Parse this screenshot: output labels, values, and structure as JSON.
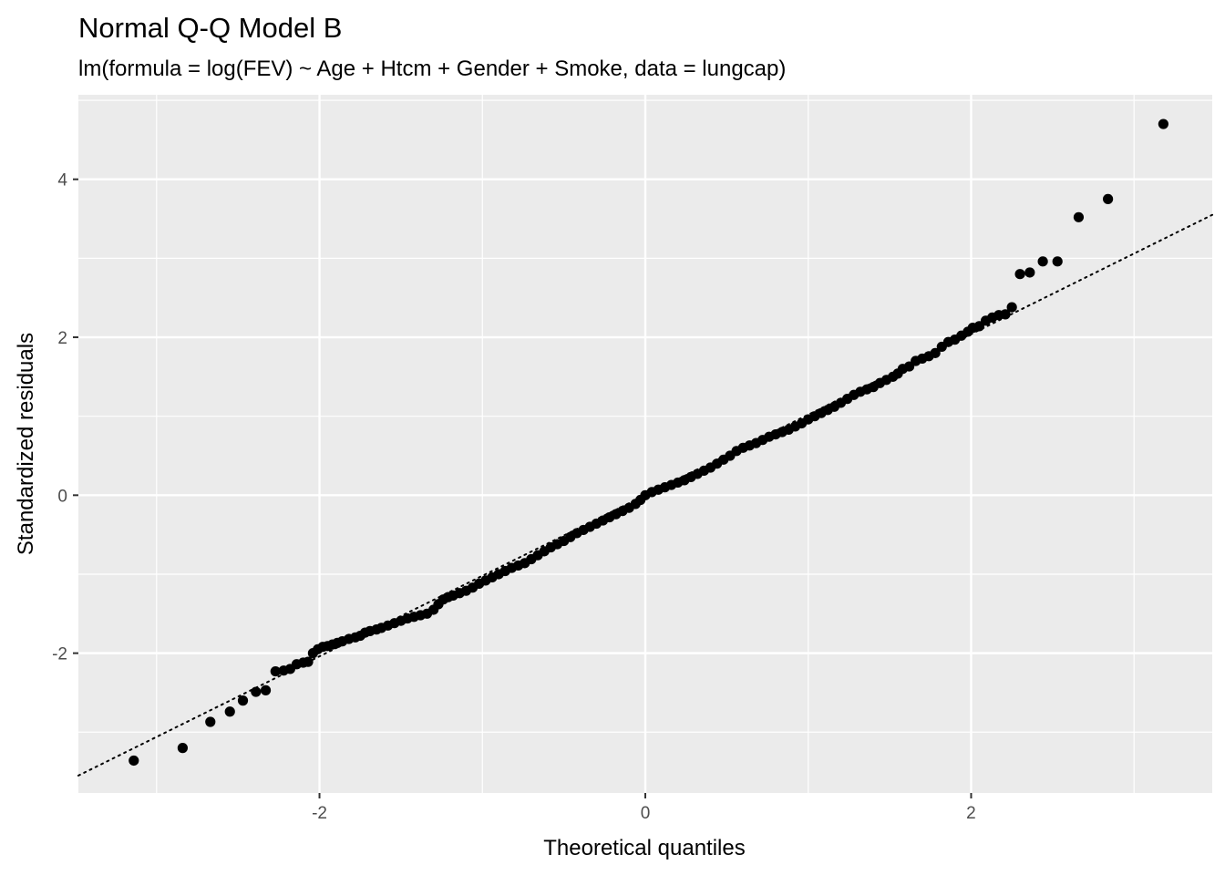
{
  "chart_data": {
    "type": "scatter",
    "title": "Normal Q-Q Model B",
    "subtitle": "lm(formula = log(FEV) ~ Age + Htcm + Gender + Smoke, data = lungcap)",
    "xlabel": "Theoretical quantiles",
    "ylabel": "Standardized residuals",
    "xlim": [
      -3.48,
      3.48
    ],
    "ylim": [
      -3.77,
      5.07
    ],
    "x_ticks": [
      -2,
      0,
      2
    ],
    "x_tick_labels": [
      "-2",
      "0",
      "2"
    ],
    "y_ticks": [
      -2,
      0,
      2,
      4
    ],
    "y_tick_labels": [
      "-2",
      "0",
      "2",
      "4"
    ],
    "grid": true,
    "reference_line": {
      "style": "dotted",
      "color": "#000000",
      "intercept": 0.0,
      "slope": 1.02
    },
    "series": [
      {
        "color": "#000000",
        "points": [
          [
            -3.14,
            -3.36
          ],
          [
            -2.84,
            -3.2
          ],
          [
            -2.67,
            -2.87
          ],
          [
            -2.55,
            -2.74
          ],
          [
            -2.47,
            -2.6
          ],
          [
            -2.39,
            -2.49
          ],
          [
            -2.33,
            -2.47
          ],
          [
            -2.27,
            -2.23
          ],
          [
            -2.22,
            -2.22
          ],
          [
            -2.18,
            -2.2
          ],
          [
            -2.14,
            -2.14
          ],
          [
            -2.1,
            -2.12
          ],
          [
            -2.07,
            -2.11
          ],
          [
            -2.04,
            -2.0
          ],
          [
            -2.01,
            -1.95
          ],
          [
            -1.98,
            -1.92
          ],
          [
            -1.95,
            -1.91
          ],
          [
            -1.92,
            -1.89
          ],
          [
            -1.89,
            -1.87
          ],
          [
            -1.86,
            -1.85
          ],
          [
            -1.82,
            -1.82
          ],
          [
            -1.78,
            -1.8
          ],
          [
            -1.75,
            -1.78
          ],
          [
            -1.72,
            -1.74
          ],
          [
            -1.69,
            -1.72
          ],
          [
            -1.65,
            -1.7
          ],
          [
            -1.62,
            -1.68
          ],
          [
            -1.58,
            -1.65
          ],
          [
            -1.54,
            -1.62
          ],
          [
            -1.5,
            -1.59
          ],
          [
            -1.46,
            -1.56
          ],
          [
            -1.42,
            -1.54
          ],
          [
            -1.38,
            -1.52
          ],
          [
            -1.34,
            -1.5
          ],
          [
            -1.3,
            -1.45
          ],
          [
            -1.27,
            -1.38
          ],
          [
            -1.24,
            -1.32
          ],
          [
            -1.21,
            -1.29
          ],
          [
            -1.18,
            -1.27
          ],
          [
            -1.14,
            -1.24
          ],
          [
            -1.1,
            -1.21
          ],
          [
            -1.06,
            -1.17
          ],
          [
            -1.02,
            -1.12
          ],
          [
            -0.98,
            -1.08
          ],
          [
            -0.94,
            -1.04
          ],
          [
            -0.9,
            -1.0
          ],
          [
            -0.86,
            -0.96
          ],
          [
            -0.82,
            -0.92
          ],
          [
            -0.78,
            -0.89
          ],
          [
            -0.74,
            -0.86
          ],
          [
            -0.7,
            -0.81
          ],
          [
            -0.66,
            -0.76
          ],
          [
            -0.62,
            -0.71
          ],
          [
            -0.58,
            -0.66
          ],
          [
            -0.54,
            -0.62
          ],
          [
            -0.5,
            -0.58
          ],
          [
            -0.46,
            -0.53
          ],
          [
            -0.42,
            -0.48
          ],
          [
            -0.38,
            -0.44
          ],
          [
            -0.34,
            -0.4
          ],
          [
            -0.3,
            -0.36
          ],
          [
            -0.26,
            -0.32
          ],
          [
            -0.22,
            -0.28
          ],
          [
            -0.18,
            -0.24
          ],
          [
            -0.14,
            -0.2
          ],
          [
            -0.1,
            -0.16
          ],
          [
            -0.06,
            -0.11
          ],
          [
            -0.03,
            -0.06
          ],
          [
            0.0,
            0.0
          ],
          [
            0.04,
            0.04
          ],
          [
            0.08,
            0.07
          ],
          [
            0.12,
            0.1
          ],
          [
            0.16,
            0.13
          ],
          [
            0.2,
            0.16
          ],
          [
            0.24,
            0.19
          ],
          [
            0.28,
            0.23
          ],
          [
            0.32,
            0.27
          ],
          [
            0.36,
            0.31
          ],
          [
            0.4,
            0.35
          ],
          [
            0.44,
            0.4
          ],
          [
            0.48,
            0.45
          ],
          [
            0.52,
            0.5
          ],
          [
            0.56,
            0.56
          ],
          [
            0.6,
            0.6
          ],
          [
            0.64,
            0.63
          ],
          [
            0.68,
            0.66
          ],
          [
            0.72,
            0.7
          ],
          [
            0.76,
            0.74
          ],
          [
            0.8,
            0.77
          ],
          [
            0.84,
            0.8
          ],
          [
            0.88,
            0.83
          ],
          [
            0.92,
            0.87
          ],
          [
            0.96,
            0.91
          ],
          [
            1.0,
            0.96
          ],
          [
            1.04,
            1.0
          ],
          [
            1.08,
            1.04
          ],
          [
            1.12,
            1.08
          ],
          [
            1.16,
            1.12
          ],
          [
            1.2,
            1.17
          ],
          [
            1.24,
            1.22
          ],
          [
            1.28,
            1.27
          ],
          [
            1.32,
            1.31
          ],
          [
            1.36,
            1.34
          ],
          [
            1.4,
            1.37
          ],
          [
            1.44,
            1.42
          ],
          [
            1.48,
            1.46
          ],
          [
            1.52,
            1.5
          ],
          [
            1.55,
            1.54
          ],
          [
            1.58,
            1.6
          ],
          [
            1.62,
            1.63
          ],
          [
            1.66,
            1.7
          ],
          [
            1.7,
            1.73
          ],
          [
            1.74,
            1.76
          ],
          [
            1.78,
            1.8
          ],
          [
            1.82,
            1.88
          ],
          [
            1.86,
            1.94
          ],
          [
            1.9,
            1.97
          ],
          [
            1.94,
            2.02
          ],
          [
            1.98,
            2.07
          ],
          [
            2.01,
            2.12
          ],
          [
            2.05,
            2.14
          ],
          [
            2.09,
            2.21
          ],
          [
            2.13,
            2.25
          ],
          [
            2.17,
            2.28
          ],
          [
            2.21,
            2.29
          ],
          [
            2.25,
            2.38
          ],
          [
            2.3,
            2.8
          ],
          [
            2.36,
            2.82
          ],
          [
            2.44,
            2.96
          ],
          [
            2.53,
            2.96
          ],
          [
            2.66,
            3.52
          ],
          [
            2.84,
            3.75
          ],
          [
            3.18,
            4.7
          ]
        ]
      }
    ]
  }
}
